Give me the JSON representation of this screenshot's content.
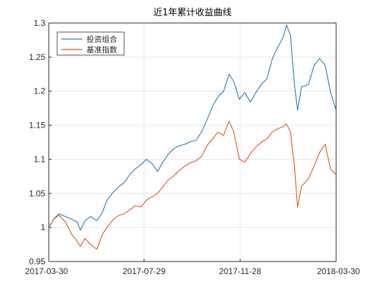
{
  "chart_data": {
    "type": "line",
    "title": "近1年累计收益曲线",
    "xlabel": "",
    "ylabel": "",
    "x_ticks": [
      "2017-03-30",
      "2017-07-29",
      "2017-11-28",
      "2018-03-30"
    ],
    "xlim": [
      "2017-03-30",
      "2018-03-30"
    ],
    "ylim": [
      0.95,
      1.3
    ],
    "y_ticks": [
      "0.95",
      "1",
      "1.05",
      "1.1",
      "1.15",
      "1.2",
      "1.25",
      "1.3"
    ],
    "grid": true,
    "legend_position": "top-left",
    "series": [
      {
        "name": "投资组合",
        "color": "#1f77b4",
        "points": [
          [
            "2017-03-30",
            1.0
          ],
          [
            "2017-04-05",
            1.012
          ],
          [
            "2017-04-12",
            1.02
          ],
          [
            "2017-04-20",
            1.016
          ],
          [
            "2017-04-28",
            1.012
          ],
          [
            "2017-05-05",
            1.008
          ],
          [
            "2017-05-09",
            0.996
          ],
          [
            "2017-05-15",
            1.01
          ],
          [
            "2017-05-22",
            1.016
          ],
          [
            "2017-05-30",
            1.01
          ],
          [
            "2017-06-06",
            1.022
          ],
          [
            "2017-06-12",
            1.04
          ],
          [
            "2017-06-20",
            1.052
          ],
          [
            "2017-06-27",
            1.06
          ],
          [
            "2017-07-04",
            1.066
          ],
          [
            "2017-07-11",
            1.078
          ],
          [
            "2017-07-18",
            1.086
          ],
          [
            "2017-07-25",
            1.092
          ],
          [
            "2017-08-01",
            1.1
          ],
          [
            "2017-08-08",
            1.094
          ],
          [
            "2017-08-15",
            1.082
          ],
          [
            "2017-08-22",
            1.096
          ],
          [
            "2017-08-29",
            1.108
          ],
          [
            "2017-09-05",
            1.116
          ],
          [
            "2017-09-12",
            1.12
          ],
          [
            "2017-09-19",
            1.122
          ],
          [
            "2017-09-26",
            1.126
          ],
          [
            "2017-10-03",
            1.128
          ],
          [
            "2017-10-10",
            1.14
          ],
          [
            "2017-10-17",
            1.158
          ],
          [
            "2017-10-24",
            1.178
          ],
          [
            "2017-10-31",
            1.192
          ],
          [
            "2017-11-07",
            1.2
          ],
          [
            "2017-11-14",
            1.225
          ],
          [
            "2017-11-20",
            1.214
          ],
          [
            "2017-11-27",
            1.188
          ],
          [
            "2017-12-04",
            1.198
          ],
          [
            "2017-12-11",
            1.184
          ],
          [
            "2017-12-18",
            1.198
          ],
          [
            "2017-12-25",
            1.21
          ],
          [
            "2018-01-01",
            1.218
          ],
          [
            "2018-01-08",
            1.248
          ],
          [
            "2018-01-15",
            1.265
          ],
          [
            "2018-01-22",
            1.28
          ],
          [
            "2018-01-26",
            1.297
          ],
          [
            "2018-01-31",
            1.282
          ],
          [
            "2018-02-05",
            1.21
          ],
          [
            "2018-02-09",
            1.172
          ],
          [
            "2018-02-14",
            1.206
          ],
          [
            "2018-02-23",
            1.21
          ],
          [
            "2018-03-02",
            1.238
          ],
          [
            "2018-03-09",
            1.248
          ],
          [
            "2018-03-16",
            1.238
          ],
          [
            "2018-03-23",
            1.198
          ],
          [
            "2018-03-30",
            1.172
          ]
        ]
      },
      {
        "name": "基准指数",
        "color": "#d95319",
        "points": [
          [
            "2017-03-30",
            1.0
          ],
          [
            "2017-04-05",
            1.012
          ],
          [
            "2017-04-12",
            1.018
          ],
          [
            "2017-04-20",
            1.008
          ],
          [
            "2017-04-28",
            0.99
          ],
          [
            "2017-05-05",
            0.98
          ],
          [
            "2017-05-09",
            0.972
          ],
          [
            "2017-05-15",
            0.984
          ],
          [
            "2017-05-22",
            0.975
          ],
          [
            "2017-05-30",
            0.968
          ],
          [
            "2017-06-06",
            0.99
          ],
          [
            "2017-06-12",
            1.0
          ],
          [
            "2017-06-20",
            1.012
          ],
          [
            "2017-06-27",
            1.018
          ],
          [
            "2017-07-04",
            1.02
          ],
          [
            "2017-07-11",
            1.026
          ],
          [
            "2017-07-18",
            1.032
          ],
          [
            "2017-07-25",
            1.03
          ],
          [
            "2017-08-01",
            1.04
          ],
          [
            "2017-08-08",
            1.045
          ],
          [
            "2017-08-15",
            1.05
          ],
          [
            "2017-08-22",
            1.06
          ],
          [
            "2017-08-29",
            1.07
          ],
          [
            "2017-09-05",
            1.076
          ],
          [
            "2017-09-12",
            1.084
          ],
          [
            "2017-09-19",
            1.09
          ],
          [
            "2017-09-26",
            1.095
          ],
          [
            "2017-10-03",
            1.098
          ],
          [
            "2017-10-10",
            1.104
          ],
          [
            "2017-10-17",
            1.12
          ],
          [
            "2017-10-24",
            1.13
          ],
          [
            "2017-10-31",
            1.14
          ],
          [
            "2017-11-07",
            1.135
          ],
          [
            "2017-11-14",
            1.156
          ],
          [
            "2017-11-20",
            1.14
          ],
          [
            "2017-11-27",
            1.1
          ],
          [
            "2017-12-04",
            1.096
          ],
          [
            "2017-12-11",
            1.108
          ],
          [
            "2017-12-18",
            1.118
          ],
          [
            "2017-12-25",
            1.125
          ],
          [
            "2018-01-01",
            1.13
          ],
          [
            "2018-01-08",
            1.14
          ],
          [
            "2018-01-15",
            1.145
          ],
          [
            "2018-01-22",
            1.148
          ],
          [
            "2018-01-26",
            1.152
          ],
          [
            "2018-01-31",
            1.14
          ],
          [
            "2018-02-05",
            1.09
          ],
          [
            "2018-02-09",
            1.03
          ],
          [
            "2018-02-14",
            1.06
          ],
          [
            "2018-02-23",
            1.072
          ],
          [
            "2018-03-02",
            1.09
          ],
          [
            "2018-03-09",
            1.11
          ],
          [
            "2018-03-16",
            1.122
          ],
          [
            "2018-03-23",
            1.085
          ],
          [
            "2018-03-30",
            1.078
          ]
        ]
      }
    ]
  }
}
